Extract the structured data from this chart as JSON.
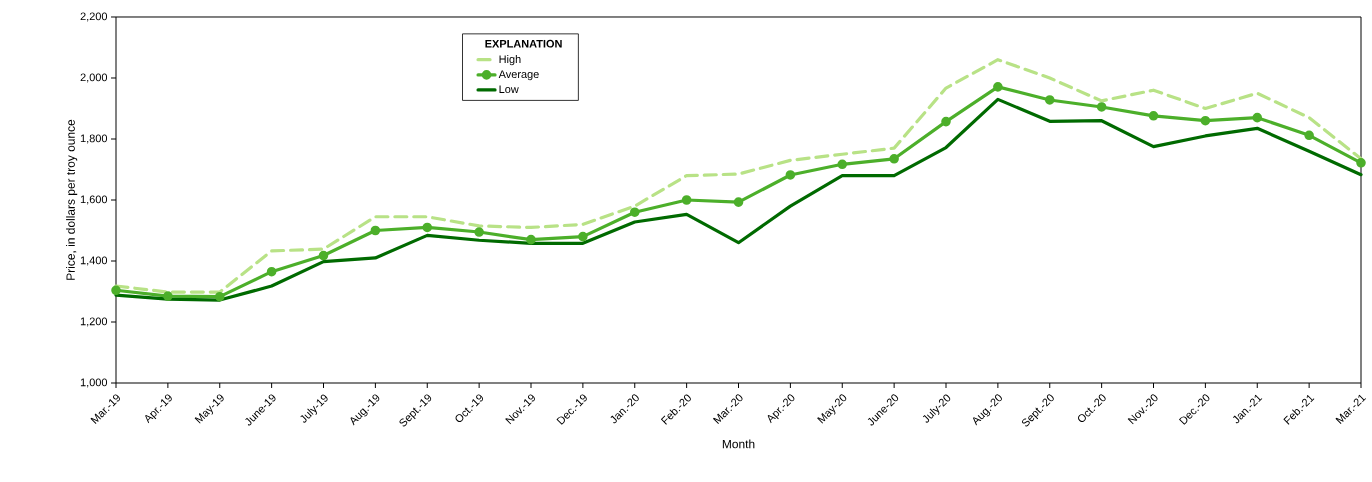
{
  "chart_data": {
    "type": "line",
    "xlabel": "Month",
    "ylabel": "Price, in dollars per troy ounce",
    "legend_title": "EXPLANATION",
    "legend": "top left",
    "categories": [
      "Mar.-19",
      "Apr.-19",
      "May-19",
      "June-19",
      "July-19",
      "Aug.-19",
      "Sept.-19",
      "Oct.-19",
      "Nov.-19",
      "Dec.-19",
      "Jan.-20",
      "Feb.-20",
      "Mar.-20",
      "Apr.-20",
      "May-20",
      "June-20",
      "July-20",
      "Aug.-20",
      "Sept.-20",
      "Oct.-20",
      "Nov.-20",
      "Dec.-20",
      "Jan.-21",
      "Feb.-21",
      "Mar.-21"
    ],
    "ylim": [
      1000,
      2200
    ],
    "yticks": [
      {
        "value": 1000,
        "label": "1,000"
      },
      {
        "value": 1200,
        "label": "1,200"
      },
      {
        "value": 1400,
        "label": "1,400"
      },
      {
        "value": 1600,
        "label": "1,600"
      },
      {
        "value": 1800,
        "label": "1,800"
      },
      {
        "value": 2000,
        "label": "2,000"
      },
      {
        "value": 2200,
        "label": "2,200"
      }
    ],
    "series": [
      {
        "name": "High",
        "color": "#b8e286",
        "line_style": "dashed",
        "marker": "none",
        "values": [
          1318,
          1298,
          1298,
          1433,
          1439,
          1545,
          1545,
          1515,
          1510,
          1520,
          1580,
          1680,
          1685,
          1730,
          1750,
          1770,
          1967,
          2060,
          2000,
          1925,
          1960,
          1900,
          1950,
          1870,
          1735
        ]
      },
      {
        "name": "Average",
        "color": "#4caf2a",
        "line_style": "solid",
        "marker": "circle",
        "values": [
          1304,
          1285,
          1283,
          1365,
          1418,
          1500,
          1510,
          1495,
          1470,
          1480,
          1560,
          1600,
          1593,
          1682,
          1717,
          1735,
          1857,
          1971,
          1928,
          1905,
          1876,
          1860,
          1870,
          1812,
          1722
        ]
      },
      {
        "name": "Low",
        "color": "#006a00",
        "line_style": "solid",
        "marker": "none",
        "values": [
          1288,
          1275,
          1272,
          1318,
          1398,
          1410,
          1484,
          1468,
          1458,
          1458,
          1528,
          1553,
          1460,
          1580,
          1680,
          1680,
          1772,
          1930,
          1858,
          1860,
          1775,
          1810,
          1835,
          1760,
          1683
        ]
      }
    ]
  }
}
